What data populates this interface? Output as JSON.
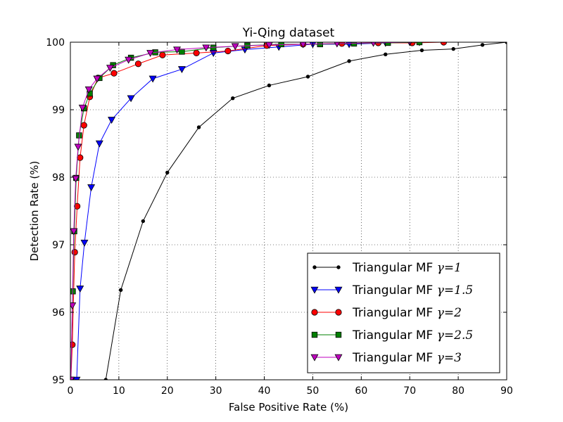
{
  "chart_data": {
    "type": "line",
    "title": "Yi-Qing dataset",
    "xlabel": "False Positive Rate (%)",
    "ylabel": "Detection Rate (%)",
    "xlim": [
      0,
      90
    ],
    "ylim": [
      95,
      100
    ],
    "xticks": [
      0,
      10,
      20,
      30,
      40,
      50,
      60,
      70,
      80,
      90
    ],
    "yticks": [
      95,
      96,
      97,
      98,
      99,
      100
    ],
    "grid": true,
    "legend_position": "lower-right",
    "series": [
      {
        "name": "Triangular MF γ=1",
        "legend_prefix": "Triangular MF ",
        "legend_math": "γ=1",
        "color": "#000000",
        "marker": "dot",
        "points": [
          [
            7.3,
            95.0
          ],
          [
            10.4,
            96.33
          ],
          [
            15.0,
            97.35
          ],
          [
            20.0,
            98.07
          ],
          [
            26.5,
            98.74
          ],
          [
            33.5,
            99.17
          ],
          [
            41.0,
            99.36
          ],
          [
            49.0,
            99.49
          ],
          [
            57.5,
            99.72
          ],
          [
            65.0,
            99.82
          ],
          [
            72.5,
            99.88
          ],
          [
            79.0,
            99.9
          ],
          [
            85.0,
            99.96
          ],
          [
            90.0,
            100.0
          ]
        ]
      },
      {
        "name": "Triangular MF γ=1.5",
        "legend_prefix": "Triangular MF ",
        "legend_math": "γ=1.5",
        "color": "#0000ff",
        "marker": "triangle-down",
        "points": [
          [
            1.3,
            95.0
          ],
          [
            2.0,
            96.35
          ],
          [
            2.9,
            97.03
          ],
          [
            4.3,
            97.85
          ],
          [
            6.0,
            98.5
          ],
          [
            8.5,
            98.85
          ],
          [
            12.5,
            99.17
          ],
          [
            17.0,
            99.46
          ],
          [
            23.0,
            99.6
          ],
          [
            29.5,
            99.84
          ],
          [
            36.0,
            99.89
          ],
          [
            43.0,
            99.93
          ],
          [
            50.0,
            99.97
          ],
          [
            57.5,
            99.97
          ],
          [
            65.0,
            99.99
          ],
          [
            72.0,
            100.0
          ]
        ]
      },
      {
        "name": "Triangular MF γ=2",
        "legend_prefix": "Triangular MF ",
        "legend_math": "γ=2",
        "color": "#ff0000",
        "marker": "circle",
        "points": [
          [
            0.1,
            95.0
          ],
          [
            0.4,
            95.52
          ],
          [
            0.9,
            96.89
          ],
          [
            1.4,
            97.57
          ],
          [
            2.0,
            98.29
          ],
          [
            2.8,
            98.77
          ],
          [
            4.0,
            99.19
          ],
          [
            5.7,
            99.47
          ],
          [
            9.0,
            99.54
          ],
          [
            14.0,
            99.68
          ],
          [
            19.0,
            99.81
          ],
          [
            26.0,
            99.84
          ],
          [
            32.5,
            99.87
          ],
          [
            40.5,
            99.95
          ],
          [
            48.0,
            99.97
          ],
          [
            56.0,
            99.98
          ],
          [
            63.5,
            99.99
          ],
          [
            70.5,
            99.99
          ],
          [
            77.0,
            100.0
          ]
        ]
      },
      {
        "name": "Triangular MF γ=2.5",
        "legend_prefix": "Triangular MF ",
        "legend_math": "γ=2.5",
        "color": "#008000",
        "marker": "square",
        "points": [
          [
            0.1,
            95.0
          ],
          [
            0.5,
            96.31
          ],
          [
            0.8,
            97.2
          ],
          [
            1.2,
            97.99
          ],
          [
            1.8,
            98.62
          ],
          [
            2.8,
            99.02
          ],
          [
            4.0,
            99.24
          ],
          [
            6.0,
            99.47
          ],
          [
            8.8,
            99.66
          ],
          [
            12.5,
            99.77
          ],
          [
            17.5,
            99.85
          ],
          [
            23.0,
            99.86
          ],
          [
            29.5,
            99.92
          ],
          [
            36.5,
            99.95
          ],
          [
            43.5,
            99.97
          ],
          [
            51.5,
            99.97
          ],
          [
            58.5,
            99.98
          ],
          [
            65.5,
            99.99
          ],
          [
            72.0,
            100.0
          ]
        ]
      },
      {
        "name": "Triangular MF γ=3",
        "legend_prefix": "Triangular MF ",
        "legend_math": "γ=3",
        "color": "#bf00bf",
        "marker": "triangle-down",
        "points": [
          [
            0.1,
            95.0
          ],
          [
            0.4,
            96.1
          ],
          [
            0.7,
            97.2
          ],
          [
            1.1,
            97.98
          ],
          [
            1.6,
            98.45
          ],
          [
            2.5,
            99.03
          ],
          [
            3.8,
            99.3
          ],
          [
            5.5,
            99.46
          ],
          [
            8.2,
            99.62
          ],
          [
            12.0,
            99.74
          ],
          [
            16.5,
            99.84
          ],
          [
            22.0,
            99.89
          ],
          [
            28.0,
            99.92
          ],
          [
            34.0,
            99.94
          ],
          [
            41.0,
            99.96
          ],
          [
            48.0,
            99.97
          ],
          [
            55.0,
            99.98
          ],
          [
            62.5,
            99.99
          ],
          [
            70.0,
            100.0
          ]
        ]
      }
    ]
  }
}
